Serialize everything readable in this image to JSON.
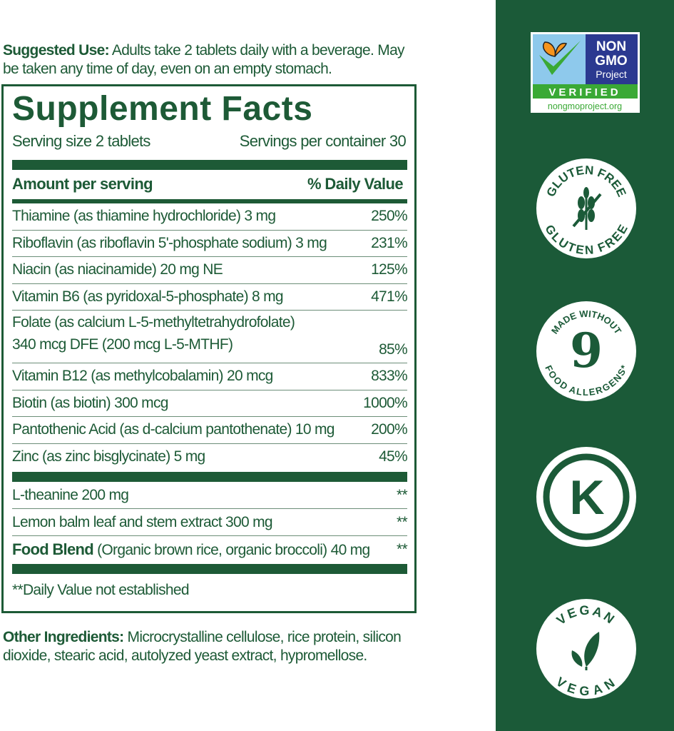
{
  "suggested_use": {
    "label": "Suggested Use:",
    "text": " Adults take 2 tablets daily with a beverage. May be taken any time of day, even on an empty stomach."
  },
  "facts": {
    "title": "Supplement Facts",
    "serving_size": "Serving size 2 tablets",
    "servings_per_container": "Servings per container 30",
    "amount_header": "Amount per serving",
    "dv_header": "% Daily Value",
    "vitamins": [
      {
        "name": "Thiamine (as thiamine hydrochloride) 3 mg",
        "dv": "250%"
      },
      {
        "name": "Riboflavin (as riboflavin 5'-phosphate sodium) 3 mg",
        "dv": "231%"
      },
      {
        "name": "Niacin (as niacinamide) 20 mg NE",
        "dv": "125%"
      },
      {
        "name": "Vitamin B6 (as pyridoxal-5-phosphate) 8 mg",
        "dv": "471%"
      },
      {
        "name": "Folate (as calcium L-5-methyltetrahydrofolate)",
        "name2": "340 mcg DFE (200 mcg L-5-MTHF)",
        "dv": "85%"
      },
      {
        "name": "Vitamin B12 (as methylcobalamin) 20 mcg",
        "dv": "833%"
      },
      {
        "name": "Biotin (as biotin) 300 mcg",
        "dv": "1000%"
      },
      {
        "name": "Pantothenic Acid (as d-calcium pantothenate) 10 mg",
        "dv": "200%"
      },
      {
        "name": "Zinc (as zinc bisglycinate) 5 mg",
        "dv": "45%"
      }
    ],
    "others": [
      {
        "name": "L-theanine 200 mg",
        "dv": "**"
      },
      {
        "name": "Lemon balm leaf and stem extract 300 mg",
        "dv": "**"
      },
      {
        "bold": "Food Blend",
        "name": " (Organic brown rice, organic broccoli) 40 mg",
        "dv": "**"
      }
    ],
    "footnote": "**Daily Value not established"
  },
  "other_ingredients": {
    "label": "Other Ingredients:",
    "text": " Microcrystalline cellulose, rice protein, silicon dioxide, stearic acid, autolyzed yeast extract, hypromellose."
  },
  "badges": {
    "gmo": {
      "line1": "NON",
      "line2": "GMO",
      "line3": "Project",
      "verified": "VERIFIED",
      "url": "nongmoproject.org"
    },
    "gluten": {
      "text": "GLUTEN FREE",
      "icon": "wheat-crossed-icon"
    },
    "allergens": {
      "number": "9",
      "top": "MADE WITHOUT",
      "bottom": "FOOD ALLERGENS*"
    },
    "kosher": {
      "letter": "K"
    },
    "vegan": {
      "text": "VEGAN",
      "icon": "leaf-icon"
    }
  },
  "colors": {
    "green": "#1d5a36",
    "panel": "#1b5a38",
    "gmo_blue": "#2b3990",
    "gmo_sky": "#8ec9ec",
    "gmo_green": "#3aa935",
    "butterfly": "#f7941d"
  }
}
